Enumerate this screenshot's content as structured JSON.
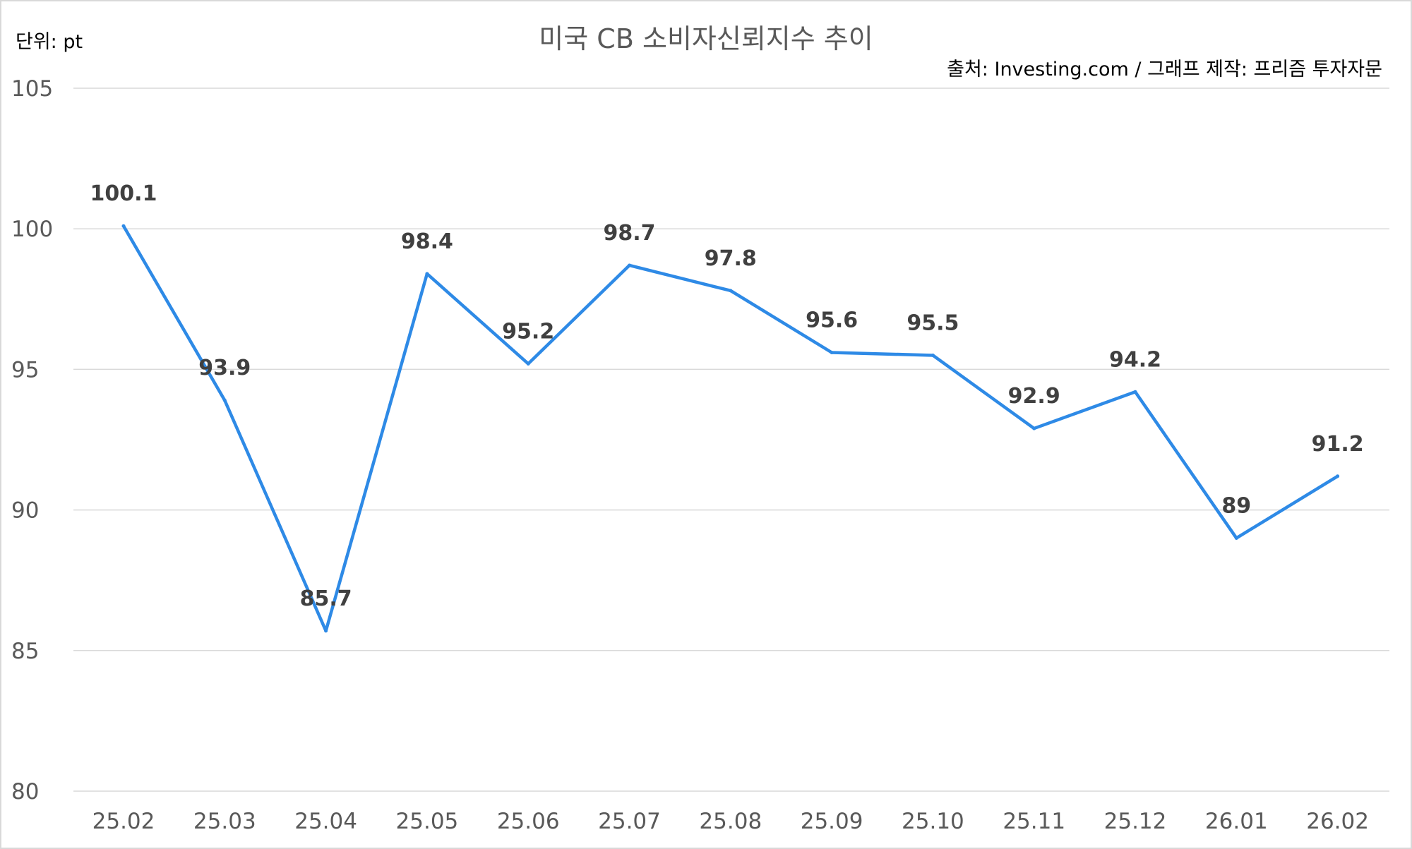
{
  "chart_data": {
    "type": "line",
    "title": "미국 CB 소비자신뢰지수 추이",
    "unit_label": "단위: pt",
    "source_note": "출처: Investing.com / 그래프 제작: 프리즘 투자자문",
    "categories": [
      "25.02",
      "25.03",
      "25.04",
      "25.05",
      "25.06",
      "25.07",
      "25.08",
      "25.09",
      "25.10",
      "25.11",
      "25.12",
      "26.01",
      "26.02"
    ],
    "series": [
      {
        "values": [
          100.1,
          93.9,
          85.7,
          98.4,
          95.2,
          98.7,
          97.8,
          95.6,
          95.5,
          92.9,
          94.2,
          89,
          91.2
        ],
        "data_labels": [
          "100.1",
          "93.9",
          "85.7",
          "98.4",
          "95.2",
          "98.7",
          "97.8",
          "95.6",
          "95.5",
          "92.9",
          "94.2",
          "89",
          "91.2"
        ],
        "color": "#2e8ae6"
      }
    ],
    "y_ticks": [
      80,
      85,
      90,
      95,
      100,
      105
    ],
    "ylim": [
      80,
      105
    ],
    "grid": true,
    "legend": false,
    "colors": {
      "line": "#2e8ae6",
      "grid": "#d9d9d9",
      "tick_text": "#595959",
      "data_label_text": "#404040",
      "title_text": "#595959"
    }
  }
}
